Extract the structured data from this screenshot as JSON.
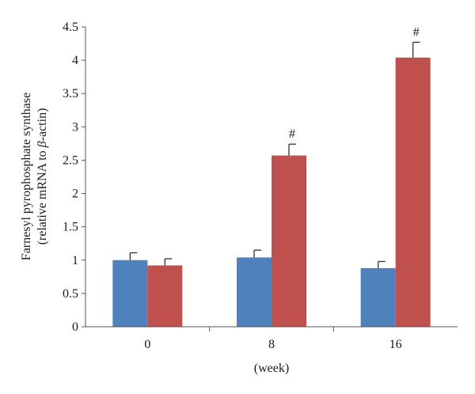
{
  "chart_data": {
    "type": "bar",
    "categories": [
      "0",
      "8",
      "16"
    ],
    "series": [
      {
        "values": [
          1.0,
          1.04,
          0.88
        ],
        "errors": [
          0.11,
          0.11,
          0.1
        ],
        "color": "#4f81bd"
      },
      {
        "values": [
          0.92,
          2.57,
          4.04
        ],
        "errors": [
          0.1,
          0.17,
          0.23
        ],
        "color": "#c0504d"
      }
    ],
    "annotations": [
      {
        "category": "8",
        "series_index": 1,
        "text": "#"
      },
      {
        "category": "16",
        "series_index": 1,
        "text": "#"
      }
    ],
    "ylim": [
      0,
      4.5
    ],
    "yticks": [
      "0",
      "0.5",
      "1",
      "1.5",
      "2",
      "2.5",
      "3",
      "3.5",
      "4",
      "4.5"
    ],
    "xlabel": "(week)",
    "ylabel_line1": "Farnesyl pyrophosphate synthase",
    "ylabel_line2_prefix": "(relative mRNA to ",
    "ylabel_line2_beta": "β",
    "ylabel_line2_suffix": "-actin)",
    "grid": false
  }
}
